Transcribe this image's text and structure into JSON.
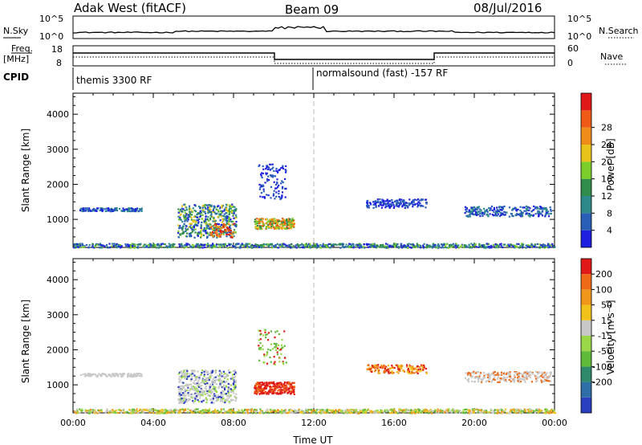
{
  "header": {
    "station": "Adak West (fitACF)",
    "beam": "Beam 09",
    "date": "08/Jul/2016"
  },
  "noise_panel": {
    "left_label": "N.Sky",
    "right_label": "N.Search",
    "left_ticks": [
      "10^5",
      "10^0"
    ],
    "right_ticks": [
      "10^5",
      "10^0"
    ]
  },
  "freq_panel": {
    "left_label_1": "Freq.",
    "left_label_2": "[MHz]",
    "right_label": "Nave",
    "left_ticks": [
      "18",
      "8"
    ],
    "right_ticks": [
      "60",
      "0"
    ]
  },
  "cpid_panel": {
    "label": "CPID",
    "mode_1": "themis 3300 RF",
    "mode_2": "normalsound (fast) -157 RF"
  },
  "chart_data": [
    {
      "type": "heatmap",
      "name": "power-panel",
      "ylabel": "Slant Range [km]",
      "y_ticks": [
        1000,
        2000,
        3000,
        4000
      ],
      "ylim": [
        200,
        4600
      ],
      "xlim": [
        0,
        24
      ],
      "colorbar_label": "Power [dB]",
      "colorbar_ticks": [
        "4",
        "8",
        "12",
        "16",
        "20",
        "24",
        "28"
      ],
      "colorbar_colors": [
        "#1f1fe0",
        "#2a5fb8",
        "#2e8a8a",
        "#2f8c4a",
        "#7ccf2a",
        "#e8c41a",
        "#f08c1a",
        "#ef5a16",
        "#e01818"
      ]
    },
    {
      "type": "heatmap",
      "name": "velocity-panel",
      "ylabel": "Slant Range [km]",
      "y_ticks": [
        1000,
        2000,
        3000,
        4000
      ],
      "ylim": [
        200,
        4600
      ],
      "xlim": [
        0,
        24
      ],
      "xlabel": "Time UT",
      "x_tick_labels": [
        "00:00",
        "04:00",
        "08:00",
        "12:00",
        "16:00",
        "20:00",
        "00:00"
      ],
      "colorbar_label": "Velocity [m s⁻¹]",
      "colorbar_ticks": [
        "200",
        "100",
        "50",
        "15",
        "-15",
        "-50",
        "-100",
        "-200"
      ],
      "colorbar_colors": [
        "#2a3fc0",
        "#2f6fa8",
        "#2e8a6a",
        "#5fba3a",
        "#9ad84a",
        "#c8c8c8",
        "#f0c21a",
        "#f0961a",
        "#ef6a16",
        "#e01818"
      ]
    }
  ]
}
